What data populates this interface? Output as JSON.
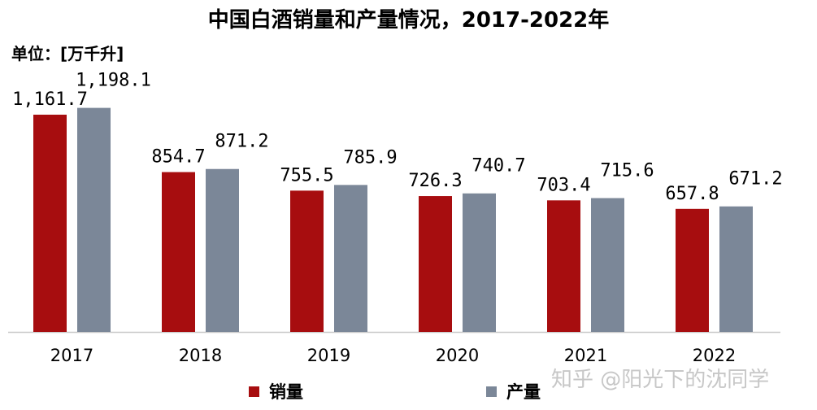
{
  "chart_data": {
    "type": "bar",
    "title": "中国白酒销量和产量情况，2017-2022年",
    "unit": "单位：[万千升]",
    "categories": [
      "2017",
      "2018",
      "2019",
      "2020",
      "2021",
      "2022"
    ],
    "series": [
      {
        "name": "销量",
        "color": "#a70d0f",
        "values": [
          1161.7,
          854.7,
          755.5,
          726.3,
          703.4,
          657.8
        ],
        "labels": [
          "1,161.7",
          "854.7",
          "755.5",
          "726.3",
          "703.4",
          "657.8"
        ]
      },
      {
        "name": "产量",
        "color": "#7b8798",
        "values": [
          1198.1,
          871.2,
          785.9,
          740.7,
          715.6,
          671.2
        ],
        "labels": [
          "1,198.1",
          "871.2",
          "785.9",
          "740.7",
          "715.6",
          "671.2"
        ]
      }
    ],
    "ylim": [
      0,
      1420
    ],
    "legend": "bottom",
    "grid": false
  },
  "watermark": "知乎 @阳光下的沈同学"
}
